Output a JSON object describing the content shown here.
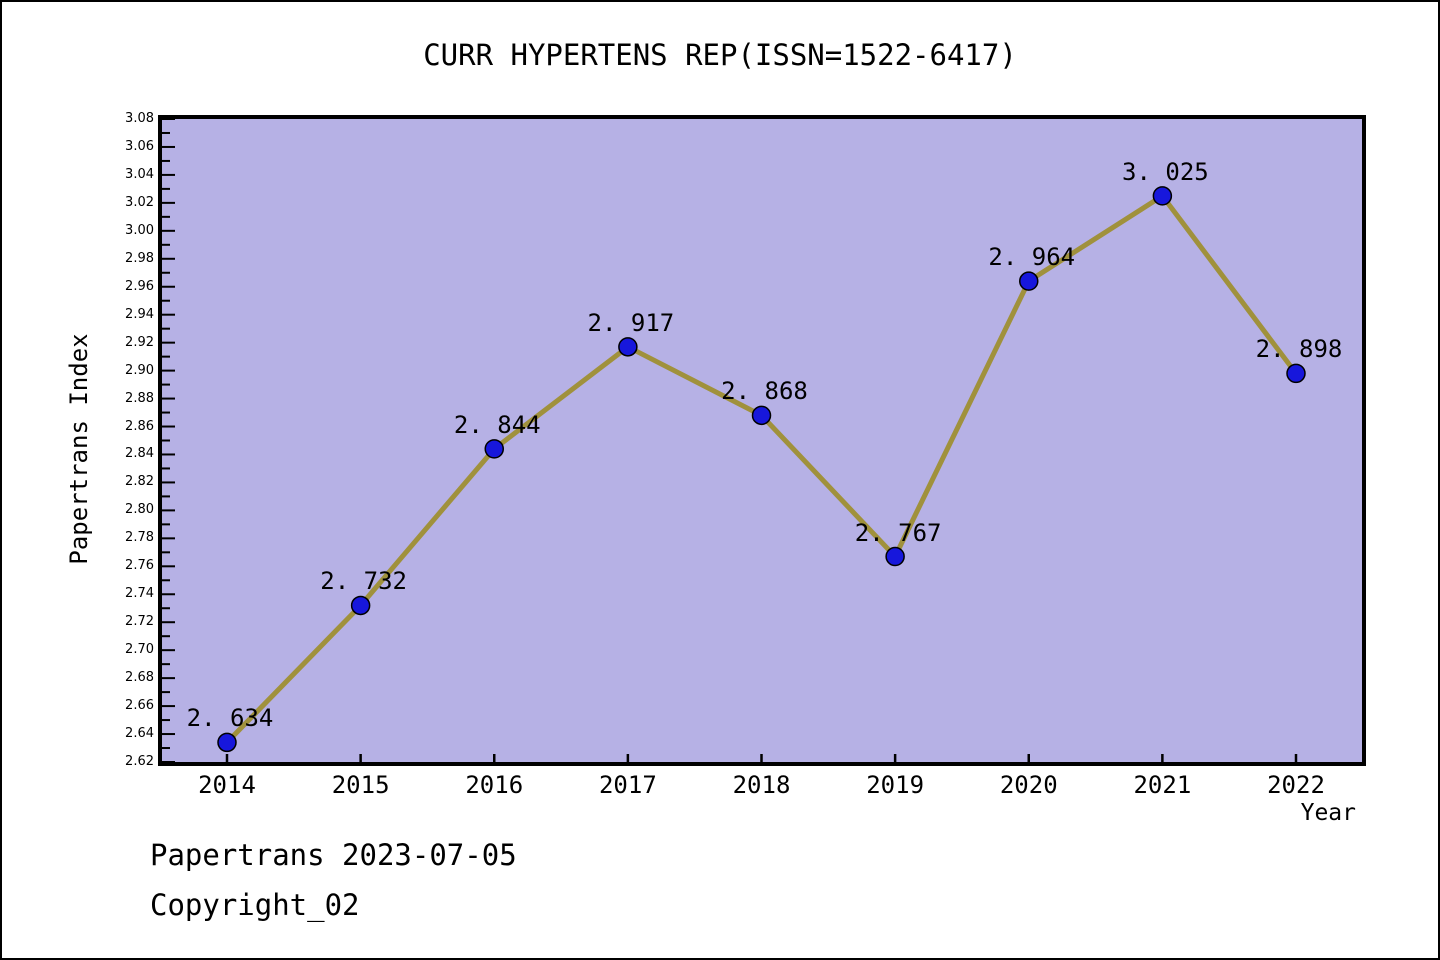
{
  "title": "CURR HYPERTENS REP(ISSN=1522-6417)",
  "footer": {
    "line1": "Papertrans 2023-07-05",
    "line2": "Copyright_02"
  },
  "chart_data": {
    "type": "line",
    "x": [
      2014,
      2015,
      2016,
      2017,
      2018,
      2019,
      2020,
      2021,
      2022
    ],
    "values": [
      2.634,
      2.732,
      2.844,
      2.917,
      2.868,
      2.767,
      2.964,
      3.025,
      2.898
    ],
    "point_labels": [
      "2. 634",
      "2. 732",
      "2. 844",
      "2. 917",
      "2. 868",
      "2. 767",
      "2. 964",
      "3. 025",
      "2. 898"
    ],
    "series_name": "Papertrans Index",
    "xlabel": "Year",
    "ylabel": "Papertrans Index",
    "ylim": [
      2.62,
      3.08
    ],
    "y_major_step": 0.02,
    "y_minor_step": 0.01,
    "grid": false,
    "legend": "none",
    "colors": {
      "plot_bg": "#b6b1e5",
      "line": "#a0913c",
      "marker": "#1717dc",
      "marker_edge": "#000000",
      "frame": "#000000",
      "text": "#000000",
      "page_bg": "#ffffff"
    }
  }
}
